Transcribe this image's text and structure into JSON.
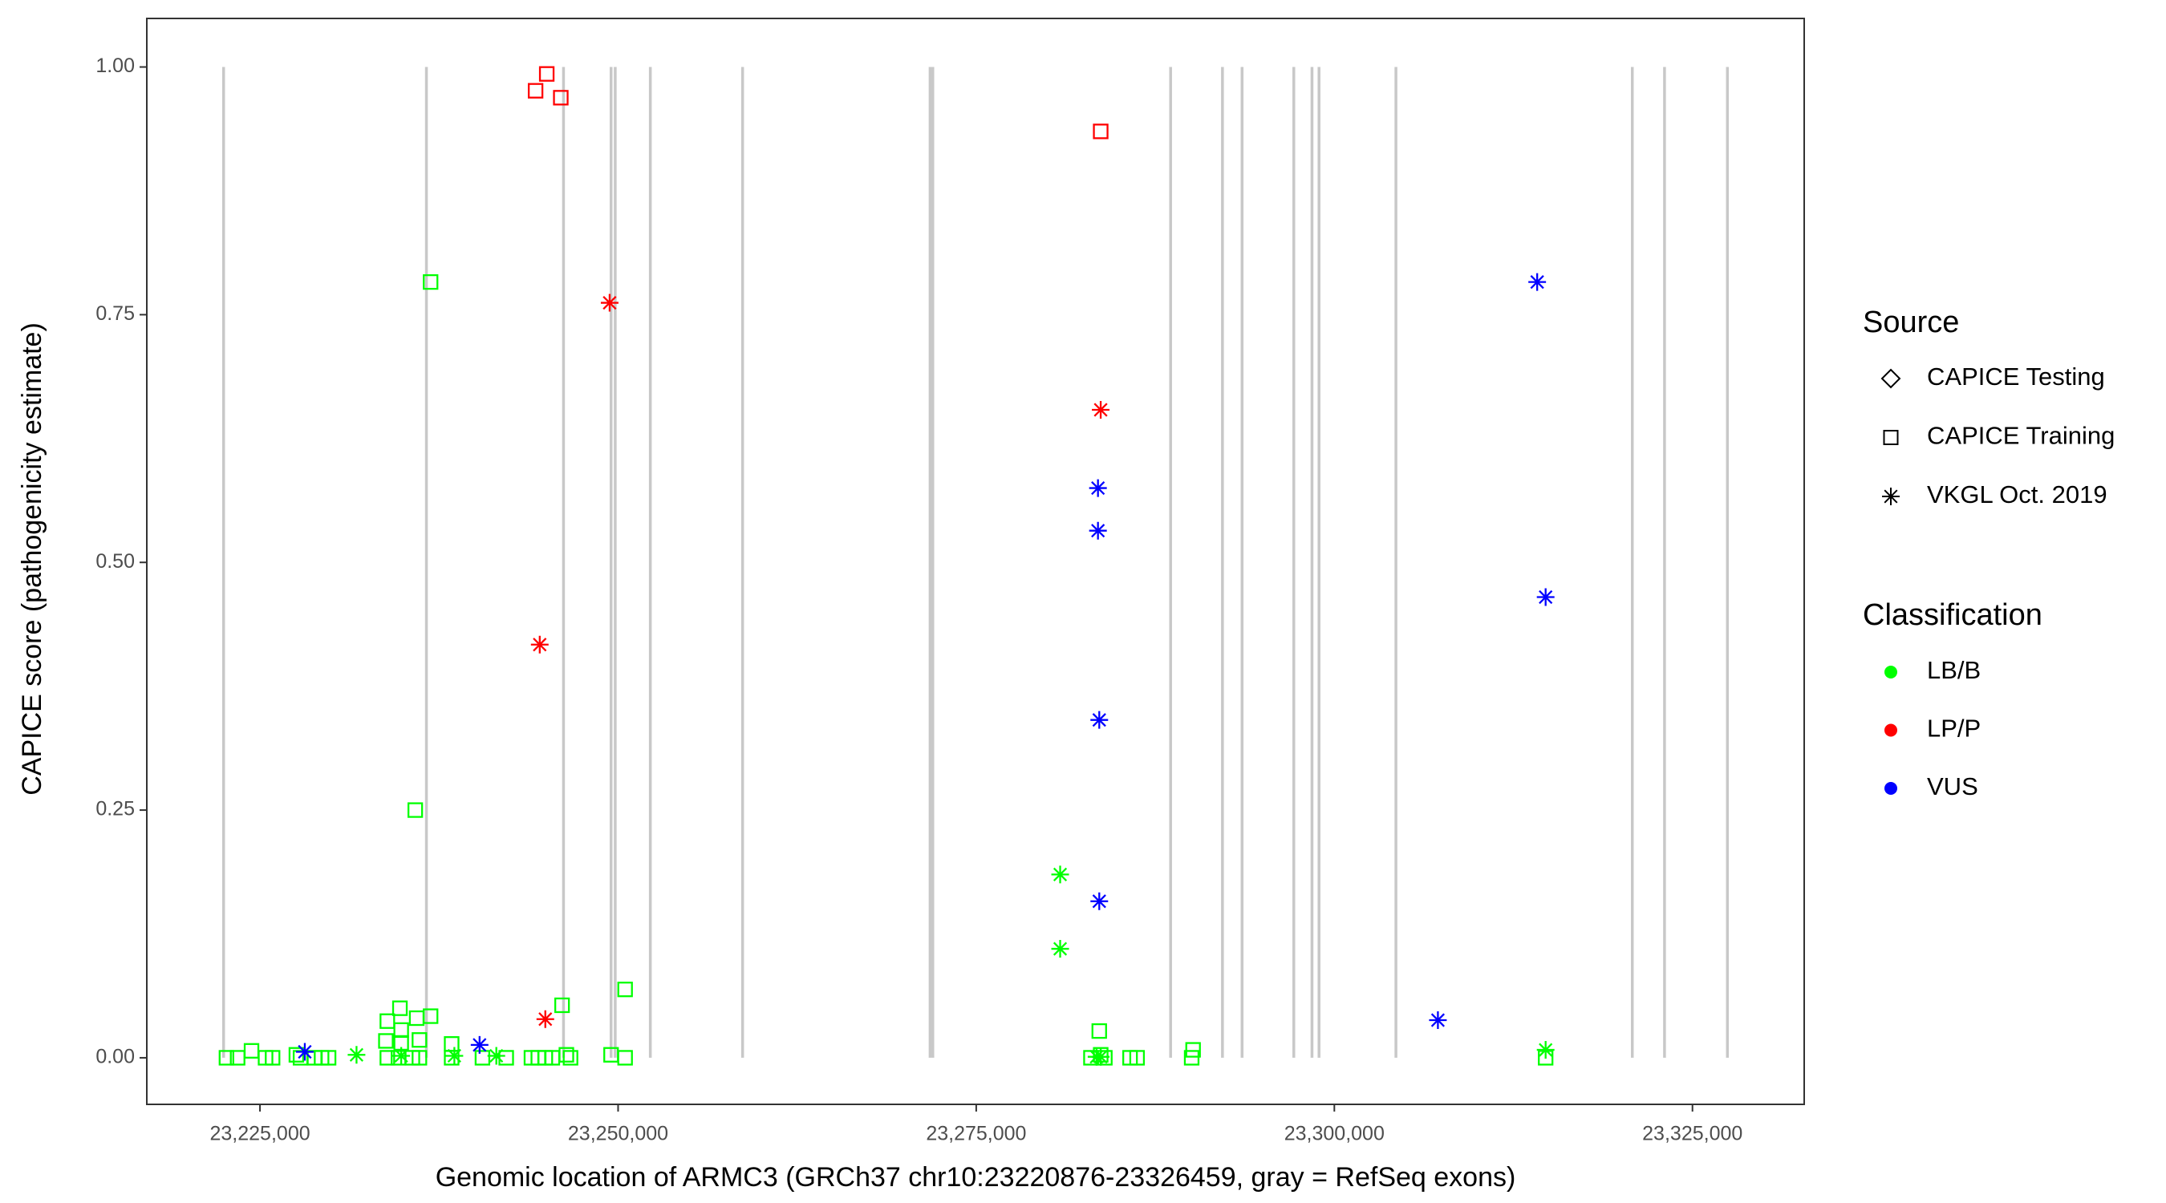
{
  "chart_data": {
    "type": "scatter",
    "x_label": "Genomic location of ARMC3 (GRCh37 chr10:23220876-23326459, gray = RefSeq exons)",
    "y_label": "CAPICE score (pathogenicity estimate)",
    "xlim": [
      23217100,
      23332800
    ],
    "ylim": [
      -0.047,
      1.049
    ],
    "xticks": [
      {
        "value": 23225000,
        "label": "23,225,000"
      },
      {
        "value": 23250000,
        "label": "23,250,000"
      },
      {
        "value": 23275000,
        "label": "23,275,000"
      },
      {
        "value": 23300000,
        "label": "23,300,000"
      },
      {
        "value": 23325000,
        "label": "23,325,000"
      }
    ],
    "yticks": [
      {
        "value": 0,
        "label": "0.00"
      },
      {
        "value": 0.25,
        "label": "0.25"
      },
      {
        "value": 0.5,
        "label": "0.50"
      },
      {
        "value": 0.75,
        "label": "0.75"
      },
      {
        "value": 1,
        "label": "1.00"
      }
    ],
    "exons": [
      23222460,
      23236620,
      23246190,
      23249510,
      23249800,
      23252250,
      23258690,
      23271780,
      23271970,
      23288570,
      23292190,
      23293560,
      23297170,
      23298440,
      23298930,
      23304300,
      23320800,
      23323050,
      23327440
    ],
    "exon_color": "#c8c8c8",
    "shape_legend_title": "Source",
    "shapes": [
      {
        "name": "CAPICE Testing",
        "marker": "diamond"
      },
      {
        "name": "CAPICE Training",
        "marker": "square"
      },
      {
        "name": "VKGL Oct. 2019",
        "marker": "asterisk"
      }
    ],
    "legend_title": "Classification",
    "series": [
      {
        "name": "LB/B",
        "color": "#00ff00",
        "x": [
          23222660,
          23223440,
          23224410,
          23225390,
          23225880,
          23227540,
          23227830,
          23228810,
          23229300,
          23229790,
          23233890,
          23233790,
          23233890,
          23234670,
          23234770,
          23234860,
          23234860,
          23235640,
          23235840,
          23235940,
          23236130,
          23236130,
          23236910,
          23236910,
          23238380,
          23238380,
          23240530,
          23242190,
          23243950,
          23244430,
          23244920,
          23245410,
          23246090,
          23246390,
          23246680,
          23249510,
          23250490,
          23250490,
          23283010,
          23283590,
          23283690,
          23283980,
          23285740,
          23286230,
          23290040,
          23290140,
          23314750,
          23231740,
          23234860,
          23238570,
          23241500,
          23280860,
          23280860,
          23283400,
          23283690,
          23314750
        ],
        "values": [
          0,
          0,
          0.007,
          0,
          0,
          0.003,
          0,
          0,
          0,
          0,
          0,
          0.017,
          0.037,
          0,
          0.05,
          0.028,
          0.015,
          0,
          0.25,
          0.04,
          0.018,
          0,
          0.042,
          0.783,
          0.014,
          0,
          0,
          0,
          0,
          0,
          0,
          0,
          0.053,
          0.003,
          0,
          0.003,
          0,
          0.069,
          0,
          0.027,
          0.003,
          0,
          0,
          0,
          0,
          0.008,
          0,
          0.003,
          0.002,
          0.002,
          0.002,
          0.185,
          0.11,
          0.001,
          0.001,
          0.008
        ],
        "markers": [
          "square",
          "square",
          "square",
          "square",
          "square",
          "square",
          "square",
          "square",
          "square",
          "square",
          "square",
          "square",
          "square",
          "square",
          "square",
          "square",
          "square",
          "square",
          "square",
          "square",
          "square",
          "square",
          "square",
          "square",
          "square",
          "square",
          "square",
          "square",
          "square",
          "square",
          "square",
          "square",
          "square",
          "square",
          "square",
          "square",
          "square",
          "square",
          "square",
          "square",
          "square",
          "square",
          "square",
          "square",
          "square",
          "square",
          "square",
          "asterisk",
          "asterisk",
          "asterisk",
          "asterisk",
          "asterisk",
          "asterisk",
          "asterisk",
          "asterisk",
          "asterisk"
        ]
      },
      {
        "name": "LP/P",
        "color": "#ff0000",
        "x": [
          23244240,
          23245020,
          23246000,
          23283690,
          23249410,
          23283690,
          23244530,
          23244920
        ],
        "values": [
          0.976,
          0.993,
          0.969,
          0.935,
          0.762,
          0.654,
          0.417,
          0.039
        ],
        "markers": [
          "square",
          "square",
          "square",
          "square",
          "asterisk",
          "asterisk",
          "asterisk",
          "asterisk"
        ]
      },
      {
        "name": "VUS",
        "color": "#0000ff",
        "x": [
          23314160,
          23283500,
          23283500,
          23314750,
          23283590,
          23283590,
          23307230,
          23240330,
          23228130
        ],
        "values": [
          0.783,
          0.575,
          0.532,
          0.465,
          0.341,
          0.158,
          0.038,
          0.013,
          0.006
        ],
        "markers": [
          "asterisk",
          "asterisk",
          "asterisk",
          "asterisk",
          "asterisk",
          "asterisk",
          "asterisk",
          "asterisk",
          "asterisk"
        ]
      }
    ]
  }
}
